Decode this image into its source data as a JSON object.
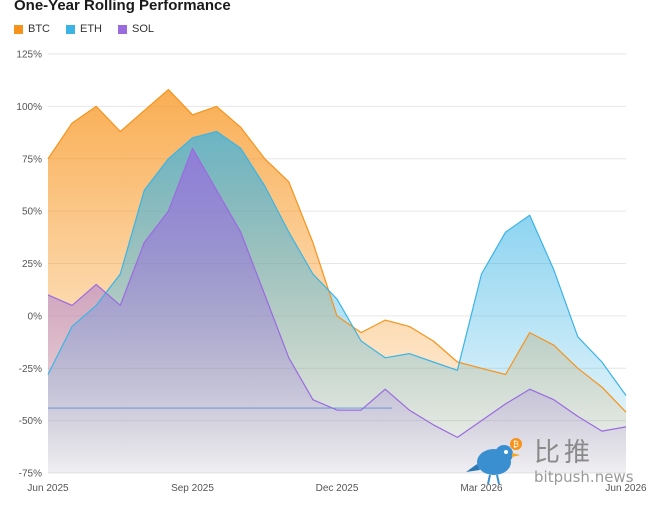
{
  "chart_data": {
    "type": "area",
    "title": "One-Year Rolling Performance",
    "xlabel": "",
    "ylabel": "",
    "ylim": [
      -75,
      125
    ],
    "yticks": [
      "125%",
      "100%",
      "75%",
      "50%",
      "25%",
      "0%",
      "-25%",
      "-50%",
      "-75%"
    ],
    "xticks": [
      "Jun 2025",
      "Sep 2025",
      "Dec 2025",
      "Mar 2026",
      "Jun 2026"
    ],
    "grid": true,
    "legend_position": "top-left",
    "x": [
      "Jun 2025",
      "Jun 2025",
      "Jul 2025",
      "Jul 2025",
      "Aug 2025",
      "Aug 2025",
      "Sep 2025",
      "Sep 2025",
      "Oct 2025",
      "Oct 2025",
      "Nov 2025",
      "Nov 2025",
      "Dec 2025",
      "Dec 2025",
      "Jan 2026",
      "Jan 2026",
      "Feb 2026",
      "Feb 2026",
      "Mar 2026",
      "Mar 2026",
      "Apr 2026",
      "Apr 2026",
      "May 2026",
      "May 2026",
      "Jun 2026"
    ],
    "series": [
      {
        "name": "BTC",
        "color": "#f7931a",
        "values": [
          75,
          92,
          100,
          88,
          98,
          108,
          96,
          100,
          90,
          75,
          64,
          35,
          0,
          -8,
          -2,
          -5,
          -12,
          -22,
          -25,
          -28,
          -8,
          -14,
          -25,
          -34,
          -46
        ]
      },
      {
        "name": "ETH",
        "color": "#3bb4e5",
        "values": [
          -28,
          -5,
          5,
          20,
          60,
          75,
          85,
          88,
          80,
          62,
          40,
          20,
          8,
          -12,
          -20,
          -18,
          -22,
          -26,
          20,
          40,
          48,
          22,
          -10,
          -22,
          -38
        ]
      },
      {
        "name": "SOL",
        "color": "#9a6bdf",
        "values": [
          10,
          5,
          15,
          5,
          35,
          50,
          80,
          60,
          40,
          10,
          -20,
          -40,
          -45,
          -45,
          -35,
          -45,
          -52,
          -58,
          -50,
          -42,
          -35,
          -40,
          -48,
          -55,
          -53
        ]
      }
    ],
    "annotations": [
      {
        "type": "horizontal-line",
        "value": -44,
        "color": "#5b8fd6"
      }
    ]
  },
  "watermark": {
    "chinese": "比推",
    "text": "bitpush.news"
  }
}
